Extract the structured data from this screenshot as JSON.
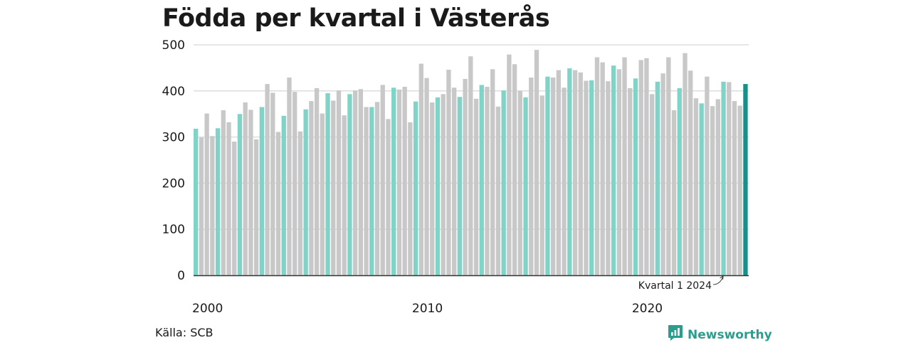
{
  "title": "Födda per kvartal i Västerås",
  "source": "Källa: SCB",
  "brand": {
    "name": "Newsworthy",
    "icon": "newsworthy-logo-icon"
  },
  "colors": {
    "q1": "#7fd3c7",
    "other": "#c8c8c8",
    "latest": "#15918a",
    "grid": "#dddddd",
    "axis": "#333333"
  },
  "chart_data": {
    "type": "bar",
    "title": "Födda per kvartal i Västerås",
    "xlabel": "",
    "ylabel": "",
    "ylim": [
      0,
      500
    ],
    "yticks": [
      "0",
      "100",
      "200",
      "300",
      "400",
      "500"
    ],
    "xticks": [
      {
        "label": "2000",
        "year": 2000
      },
      {
        "label": "2010",
        "year": 2010
      },
      {
        "label": "2020",
        "year": 2020
      }
    ],
    "grid": true,
    "annotation": {
      "text": "Kvartal 1 2024",
      "year": 2024,
      "quarter": 1
    },
    "start": {
      "year": 2000,
      "quarter": 1
    },
    "highlight": "first quarter of each year",
    "values": [
      318,
      299,
      351,
      302,
      319,
      358,
      332,
      290,
      350,
      375,
      359,
      295,
      365,
      415,
      396,
      311,
      346,
      429,
      398,
      312,
      360,
      378,
      406,
      351,
      395,
      379,
      401,
      347,
      393,
      401,
      404,
      365,
      365,
      376,
      413,
      339,
      407,
      403,
      409,
      332,
      377,
      459,
      428,
      375,
      386,
      393,
      446,
      407,
      387,
      426,
      475,
      383,
      413,
      409,
      447,
      366,
      401,
      479,
      458,
      400,
      386,
      429,
      489,
      390,
      431,
      429,
      445,
      407,
      449,
      445,
      440,
      422,
      423,
      473,
      462,
      421,
      455,
      447,
      473,
      406,
      427,
      467,
      471,
      393,
      420,
      438,
      473,
      358,
      406,
      482,
      444,
      384,
      373,
      431,
      367,
      382,
      420,
      419,
      378,
      368,
      415
    ]
  }
}
